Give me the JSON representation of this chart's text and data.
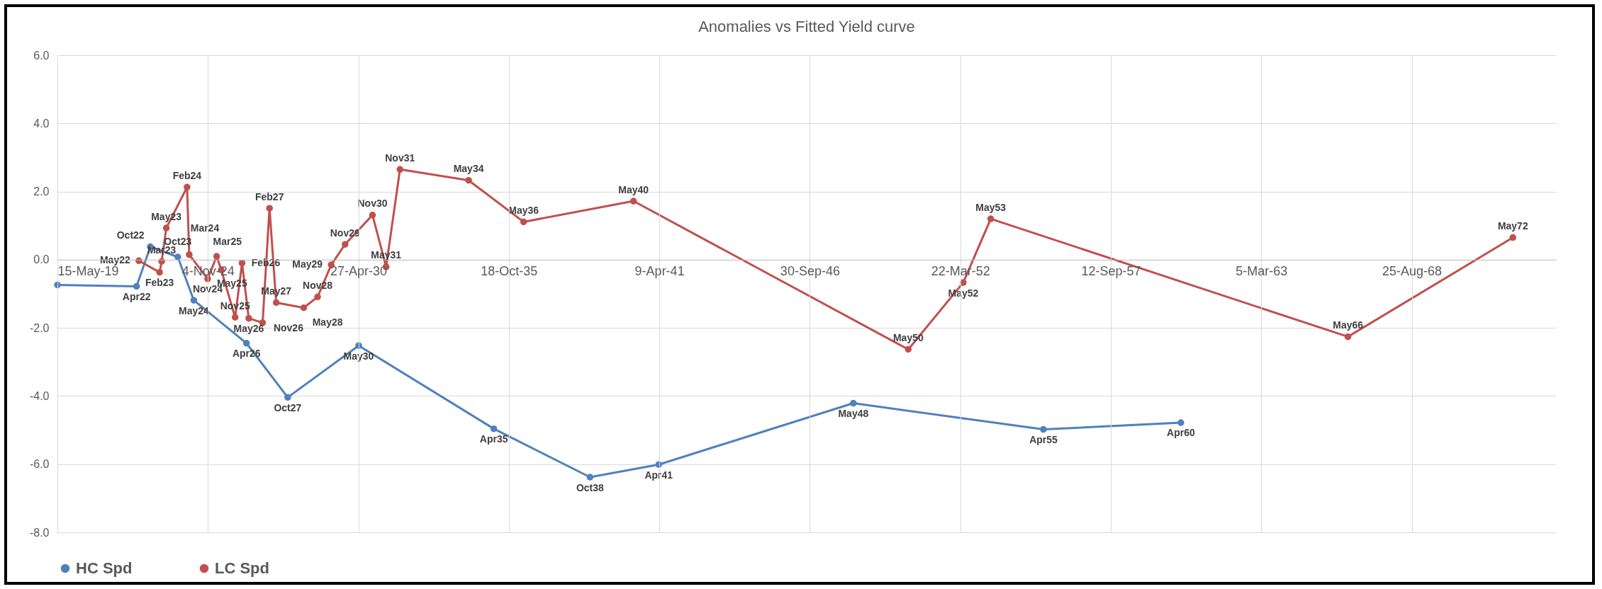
{
  "chart_data": {
    "type": "line",
    "title": "Anomalies vs Fitted Yield curve",
    "xlim": [
      "2019-05-15",
      "2073-11-24"
    ],
    "xticks": [
      {
        "value": "2019-05-15",
        "label": "15-May-19"
      },
      {
        "value": "2024-11-04",
        "label": "4-Nov-24"
      },
      {
        "value": "2030-04-27",
        "label": "27-Apr-30"
      },
      {
        "value": "2035-10-18",
        "label": "18-Oct-35"
      },
      {
        "value": "2041-04-09",
        "label": "9-Apr-41"
      },
      {
        "value": "2046-09-30",
        "label": "30-Sep-46"
      },
      {
        "value": "2052-03-22",
        "label": "22-Mar-52"
      },
      {
        "value": "2057-09-12",
        "label": "12-Sep-57"
      },
      {
        "value": "2063-03-05",
        "label": "5-Mar-63"
      },
      {
        "value": "2068-08-25",
        "label": "25-Aug-68"
      }
    ],
    "ylim": [
      -8,
      6
    ],
    "yticks": [
      {
        "value": -8,
        "label": "-8.0"
      },
      {
        "value": -6,
        "label": "-6.0"
      },
      {
        "value": -4,
        "label": "-4.0"
      },
      {
        "value": -2,
        "label": "-2.0"
      },
      {
        "value": 0,
        "label": "0.0"
      },
      {
        "value": 2,
        "label": "2.0"
      },
      {
        "value": 4,
        "label": "4.0"
      },
      {
        "value": 6,
        "label": "6.0"
      }
    ],
    "grid": true,
    "legend": "bottom",
    "marker": "circle",
    "series": [
      {
        "name": "HC Spd",
        "color": "#4f81bd",
        "x": [
          "2019-05-15",
          "2022-04",
          "2022-10",
          "2023-10",
          "2024-05",
          "2026-04",
          "2027-10",
          "2030-05",
          "2035-04",
          "2038-10",
          "2041-04",
          "2048-05",
          "2055-04",
          "2060-04"
        ],
        "values": [
          -0.74,
          -0.78,
          0.38,
          0.08,
          -1.19,
          -2.45,
          -4.04,
          -2.52,
          -4.96,
          -6.38,
          -6.01,
          -4.21,
          -4.98,
          -4.78
        ],
        "value_labels": [
          null,
          "Apr22",
          "Oct22",
          "Oct23",
          "May24",
          "Apr26",
          "Oct27",
          "May30",
          "Apr35",
          "Oct38",
          "Apr41",
          "May48",
          "Apr55",
          "Apr60"
        ]
      },
      {
        "name": "LC Spd",
        "color": "#c0504d",
        "x": [
          "2022-05",
          "2023-02",
          "2023-03",
          "2023-05",
          "2024-02",
          "2024-03",
          "2024-11",
          "2025-03",
          "2025-05",
          "2025-11",
          "2026-02",
          "2026-05",
          "2026-11",
          "2027-02",
          "2027-05",
          "2028-05",
          "2028-11",
          "2029-05",
          "2029-11",
          "2030-11",
          "2031-05",
          "2031-11",
          "2034-05",
          "2036-05",
          "2040-05",
          "2050-05",
          "2052-05",
          "2053-05",
          "2066-05",
          "2072-05"
        ],
        "values": [
          -0.03,
          -0.37,
          -0.05,
          0.93,
          2.13,
          0.15,
          -0.56,
          0.1,
          -0.3,
          -1.69,
          -0.1,
          -1.72,
          -1.85,
          1.51,
          -1.26,
          -1.41,
          -1.09,
          -0.15,
          0.45,
          1.31,
          -0.21,
          2.65,
          2.33,
          1.11,
          1.72,
          -2.63,
          -0.67,
          1.2,
          -2.26,
          0.65
        ],
        "value_labels": [
          "May22",
          "Feb23",
          "Mar23",
          "May23",
          "Feb24",
          "Mar24",
          "Nov24",
          "Mar25",
          "May25",
          "Nov25",
          "Feb26",
          "May26",
          "Nov26",
          "Feb27",
          "May27",
          "May28",
          "Nov28",
          "May29",
          "Nov29",
          "Nov30",
          "May31",
          "Nov31",
          "May34",
          "May36",
          "May40",
          "May50",
          "May52",
          "May53",
          "May66",
          "May72"
        ]
      }
    ]
  }
}
